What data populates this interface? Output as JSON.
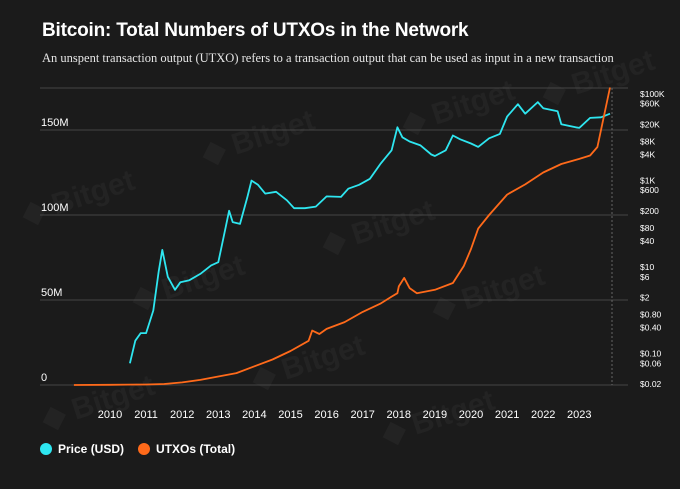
{
  "chart_data": {
    "type": "line",
    "title": "Bitcoin: Total Numbers of UTXOs in the Network",
    "subtitle": "An unspent transaction output (UTXO) refers to a transaction output that can be used as input in a new transaction",
    "x_ticks": [
      "2010",
      "2011",
      "2012",
      "2013",
      "2014",
      "2015",
      "2016",
      "2017",
      "2018",
      "2019",
      "2020",
      "2021",
      "2022",
      "2023"
    ],
    "y_left_ticks": [
      {
        "label": "0",
        "value": 0
      },
      {
        "label": "50M",
        "value": 50000000
      },
      {
        "label": "100M",
        "value": 100000000
      },
      {
        "label": "150M",
        "value": 150000000
      }
    ],
    "y_left_range": [
      0,
      170000000
    ],
    "y_right_ticks": [
      "$100K",
      "$60K",
      "$20K",
      "$8K",
      "$4K",
      "$1K",
      "$600",
      "$200",
      "$80",
      "$40",
      "$10",
      "$6",
      "$2",
      "$0.80",
      "$0.40",
      "$0.10",
      "$0.06",
      "$0.02"
    ],
    "y_right_scale": "log",
    "y_right_range": [
      0.02,
      100000
    ],
    "grid": true,
    "legend_position": "bottom-left",
    "series": [
      {
        "name": "Price (USD)",
        "color": "#2ee6f0",
        "axis": "right",
        "x": [
          2010.55,
          2010.7,
          2010.85,
          2011.0,
          2011.2,
          2011.35,
          2011.45,
          2011.6,
          2011.8,
          2011.95,
          2012.2,
          2012.5,
          2012.8,
          2013.0,
          2013.2,
          2013.3,
          2013.4,
          2013.6,
          2013.8,
          2013.92,
          2014.1,
          2014.3,
          2014.6,
          2014.9,
          2015.1,
          2015.4,
          2015.7,
          2016.0,
          2016.4,
          2016.6,
          2016.9,
          2017.2,
          2017.5,
          2017.8,
          2017.96,
          2018.1,
          2018.3,
          2018.6,
          2018.9,
          2019.0,
          2019.3,
          2019.5,
          2019.7,
          2020.0,
          2020.2,
          2020.5,
          2020.8,
          2021.0,
          2021.3,
          2021.5,
          2021.85,
          2022.0,
          2022.4,
          2022.5,
          2022.9,
          2023.0,
          2023.3,
          2023.6,
          2023.85
        ],
        "y": [
          0.06,
          0.2,
          0.3,
          0.3,
          1.0,
          8.0,
          25.0,
          6.0,
          3.0,
          4.5,
          5.0,
          7.0,
          11.0,
          13.0,
          80.0,
          200.0,
          110.0,
          100.0,
          400.0,
          1000.0,
          800.0,
          500.0,
          550.0,
          350.0,
          230.0,
          230.0,
          250.0,
          430.0,
          420.0,
          650.0,
          800.0,
          1100.0,
          2500.0,
          5000.0,
          17000.0,
          10000.0,
          8000.0,
          6500.0,
          4000.0,
          3700.0,
          5000.0,
          11000.0,
          9000.0,
          7200.0,
          6000.0,
          9500.0,
          12000.0,
          30000.0,
          58000.0,
          35000.0,
          65000.0,
          47000.0,
          40000.0,
          20000.0,
          17000.0,
          16500.0,
          28000.0,
          29000.0,
          35000.0
        ]
      },
      {
        "name": "UTXOs (Total)",
        "color": "#ff6a1a",
        "axis": "left",
        "x": [
          2009.0,
          2010.0,
          2011.0,
          2011.5,
          2012.0,
          2012.5,
          2013.0,
          2013.5,
          2014.0,
          2014.5,
          2015.0,
          2015.5,
          2015.6,
          2015.8,
          2016.0,
          2016.5,
          2017.0,
          2017.5,
          2017.8,
          2017.96,
          2018.0,
          2018.15,
          2018.3,
          2018.5,
          2019.0,
          2019.5,
          2019.8,
          2020.0,
          2020.2,
          2020.5,
          2021.0,
          2021.5,
          2022.0,
          2022.5,
          2023.0,
          2023.3,
          2023.5,
          2023.7,
          2023.85
        ],
        "y": [
          0,
          100000,
          300000,
          600000,
          1500000,
          3000000,
          5000000,
          7000000,
          11000000,
          15000000,
          20000000,
          26000000,
          32000000,
          30000000,
          33000000,
          37000000,
          43000000,
          48000000,
          52000000,
          54000000,
          58000000,
          63000000,
          57000000,
          54000000,
          56000000,
          60000000,
          70000000,
          80000000,
          92000000,
          100000000,
          112000000,
          118000000,
          125000000,
          130000000,
          133000000,
          135000000,
          140000000,
          160000000,
          175000000
        ]
      }
    ]
  }
}
